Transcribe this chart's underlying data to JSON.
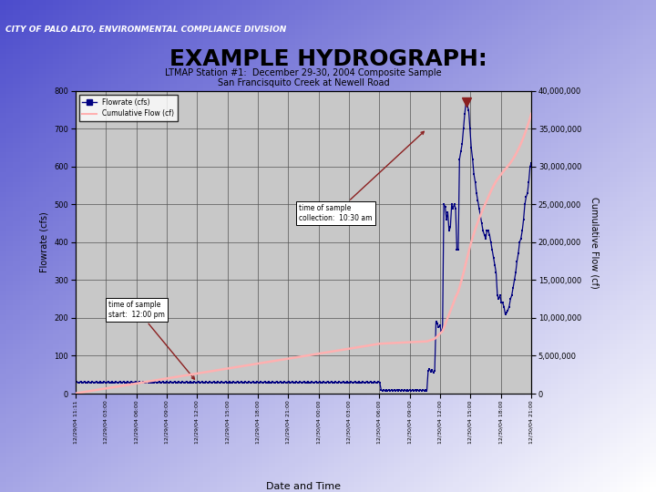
{
  "title_banner": "CITY OF PALO ALTO, ENVIRONMENTAL COMPLIANCE DIVISION",
  "main_title": "EXAMPLE HYDROGRAPH:",
  "chart_title_line1": "LTMAP Station #1:  December 29-30, 2004 Composite Sample",
  "chart_title_line2": "San Francisquito Creek at Newell Road",
  "xlabel": "Date and Time",
  "ylabel_left": "Flowrate (cfs)",
  "ylabel_right": "Cumulative Flow (cf)",
  "banner_bg": "#3333bb",
  "banner_text_color": "#ffffff",
  "chart_bg": "#c8c8c8",
  "flowrate_color": "#000080",
  "cumulative_color": "#ffb0b0",
  "annotation1_text": "time of sample\nstart:  12:00 pm",
  "annotation2_text": "time of sample\ncollection:  10:30 am",
  "arrow_color": "#8B2020",
  "tick_labels": [
    "12/29/04 11:11",
    "12/29/04 03:00",
    "12/29/04 06:00",
    "12/29/04 09:00",
    "12/29/04 12:00",
    "12/29/04 15:00",
    "12/29/04 18:00",
    "12/29/04 21:00",
    "12/30/04 00:00",
    "12/30/04 03:00",
    "12/30/04 06:00",
    "12/30/04 09:00",
    "12/30/04 12:00",
    "12/30/04 15:00",
    "12/30/04 18:00",
    "12/30/04 21:00"
  ],
  "flowrate_values": [
    30,
    32,
    28,
    30,
    32,
    28,
    30,
    32,
    28,
    30,
    32,
    28,
    30,
    32,
    28,
    30,
    32,
    28,
    30,
    32,
    28,
    30,
    32,
    28,
    30,
    32,
    28,
    30,
    32,
    28,
    30,
    32,
    28,
    30,
    32,
    28,
    30,
    32,
    28,
    30,
    32,
    28,
    30,
    32,
    28,
    30,
    32,
    28,
    30,
    32,
    28,
    30,
    32,
    28,
    30,
    32,
    28,
    30,
    32,
    28,
    30,
    32,
    28,
    30,
    32,
    28,
    30,
    32,
    28,
    30,
    32,
    28,
    30,
    32,
    28,
    30,
    32,
    28,
    30,
    32,
    28,
    30,
    32,
    28,
    30,
    32,
    28,
    30,
    32,
    28,
    30,
    32,
    28,
    30,
    32,
    28,
    30,
    32,
    28,
    30,
    32,
    28,
    30,
    32,
    28,
    30,
    32,
    28,
    30,
    32,
    28,
    30,
    32,
    28,
    30,
    32,
    28,
    30,
    32,
    28,
    30,
    32,
    28,
    30,
    32,
    28,
    30,
    32,
    28,
    30,
    32,
    28,
    30,
    32,
    28,
    30,
    32,
    28,
    30,
    32,
    28,
    30,
    32,
    28,
    30,
    32,
    28,
    30,
    32,
    28,
    30,
    32,
    28,
    30,
    32,
    28,
    30,
    32,
    28,
    30,
    32,
    28,
    30,
    32,
    28,
    30,
    32,
    28,
    30,
    32,
    28,
    30,
    32,
    28,
    30,
    32,
    28,
    30,
    32,
    28,
    30,
    32,
    28,
    30,
    32,
    28,
    30,
    32,
    28,
    30,
    32,
    28,
    30,
    32,
    28,
    30,
    32,
    28,
    30,
    32,
    28,
    30,
    32,
    28,
    30,
    32,
    28,
    30,
    32,
    28,
    30,
    32,
    28,
    30,
    32,
    28,
    30,
    32,
    28,
    30,
    32,
    28,
    30,
    32,
    28,
    30,
    32,
    28,
    30,
    32,
    28,
    30,
    32,
    28,
    10,
    8,
    10,
    8,
    10,
    8,
    10,
    8,
    10,
    8,
    10,
    8,
    10,
    8,
    10,
    8,
    10,
    8,
    10,
    8,
    10,
    8,
    10,
    8,
    10,
    8,
    10,
    8,
    10,
    8,
    10,
    8,
    10,
    8,
    10,
    8,
    60,
    65,
    58,
    62,
    55,
    60,
    190,
    185,
    175,
    180,
    165,
    170,
    500,
    495,
    460,
    480,
    430,
    440,
    500,
    490,
    500,
    490,
    380,
    380,
    620,
    640,
    660,
    700,
    740,
    770,
    760,
    750,
    700,
    650,
    620,
    580,
    560,
    530,
    510,
    490,
    470,
    450,
    430,
    420,
    410,
    430,
    430,
    420,
    400,
    380,
    360,
    340,
    320,
    260,
    250,
    260,
    240,
    240,
    230,
    210,
    215,
    220,
    230,
    250,
    260,
    280,
    300,
    320,
    350,
    370,
    400,
    410,
    430,
    460,
    500,
    520,
    530,
    560,
    600,
    610
  ],
  "ylim_left": [
    0,
    800
  ],
  "ylim_right": [
    0,
    40000000
  ],
  "yticks_left": [
    0,
    100,
    200,
    300,
    400,
    500,
    600,
    700,
    800
  ],
  "yticks_right": [
    0,
    5000000,
    10000000,
    15000000,
    20000000,
    25000000,
    30000000,
    35000000,
    40000000
  ],
  "legend_labels": [
    "Flowrate (cfs)",
    "Cumulative Flow (cf)"
  ]
}
